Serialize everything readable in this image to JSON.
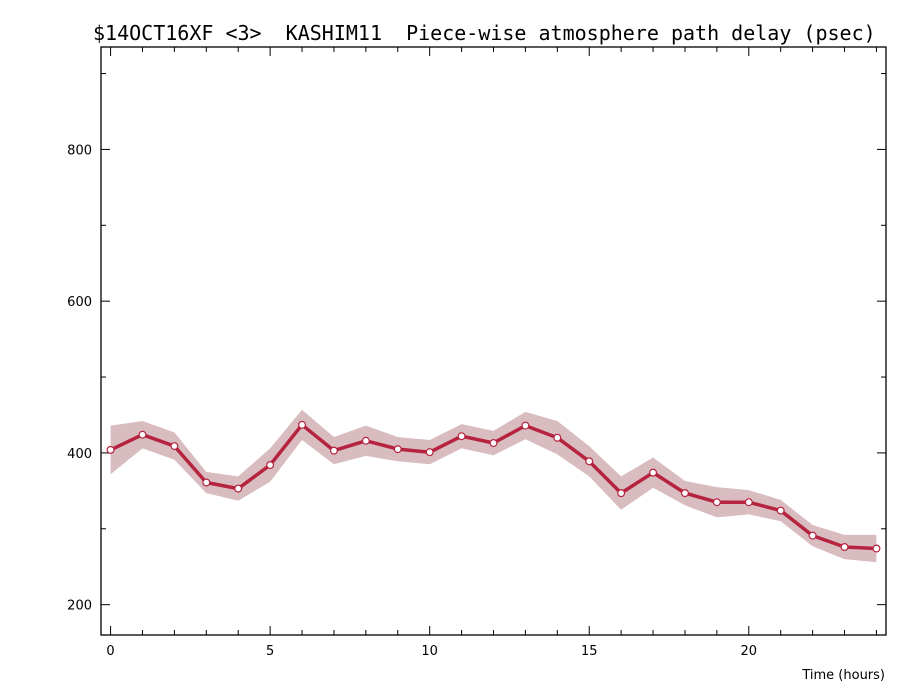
{
  "chart_data": {
    "type": "line",
    "title": "$14OCT16XF <3>  KASHIM11  Piece-wise atmosphere path delay (psec)",
    "xlabel": "Time (hours)",
    "ylabel": "",
    "xlim": [
      -0.3,
      24.3
    ],
    "ylim": [
      160,
      935
    ],
    "x_ticks": [
      0,
      5,
      10,
      15,
      20
    ],
    "y_ticks": [
      200,
      400,
      600,
      800
    ],
    "grid": false,
    "series": [
      {
        "x": [
          0,
          1,
          2,
          3,
          4,
          5,
          6,
          7,
          8,
          9,
          10,
          11,
          12,
          13,
          14,
          15,
          16,
          17,
          18,
          19,
          20,
          21,
          22,
          23,
          24
        ],
        "values": [
          404,
          424,
          409,
          361,
          353,
          384,
          437,
          403,
          416,
          405,
          401,
          422,
          413,
          436,
          420,
          389,
          347,
          374,
          347,
          335,
          335,
          324,
          291,
          276,
          274
        ],
        "error": [
          32,
          18,
          18,
          14,
          16,
          22,
          20,
          18,
          20,
          16,
          16,
          16,
          16,
          18,
          22,
          20,
          22,
          20,
          16,
          20,
          16,
          14,
          14,
          16,
          18
        ]
      }
    ],
    "colors": {
      "line": "#b5233f",
      "band": "#d9bcc0",
      "marker_fill": "#ffffff",
      "axis": "#000000"
    }
  }
}
